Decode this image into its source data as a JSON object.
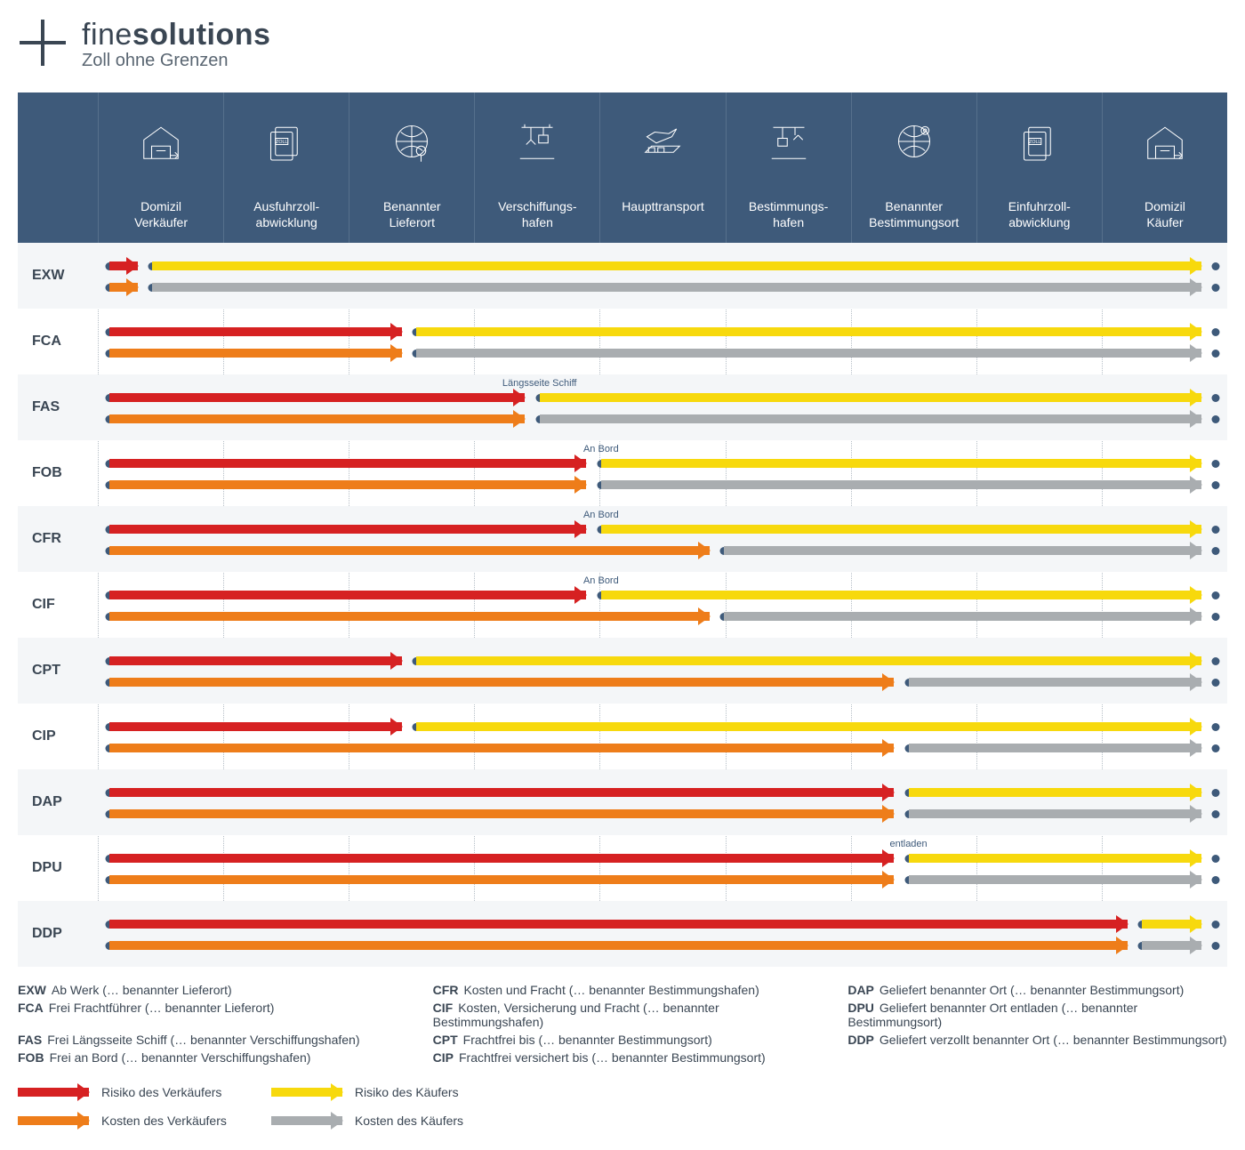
{
  "brand": {
    "name_light": "fine",
    "name_bold": "solutions",
    "tagline": "Zoll ohne Grenzen"
  },
  "colors": {
    "header_bg": "#3e5a7a",
    "risk_seller": "#d62122",
    "cost_seller": "#ee7d1a",
    "risk_buyer": "#f7d90d",
    "cost_buyer": "#a9adb0",
    "dot": "#3e5a7a"
  },
  "columns": [
    "Domizil\nVerkäufer",
    "Ausfuhrzoll-\nabwicklung",
    "Benannter\nLieferort",
    "Verschiffungs-\nhafen",
    "Haupttransport",
    "Bestimmungs-\nhafen",
    "Benannter\nBestimmungsort",
    "Einfuhrzoll-\nabwicklung",
    "Domizil\nKäufer"
  ],
  "icons": [
    "warehouse",
    "customs",
    "globe-pin",
    "crane",
    "ship-plane",
    "crane-down",
    "globe-target",
    "customs",
    "warehouse"
  ],
  "terms": [
    {
      "code": "EXW",
      "risk": 0.35,
      "cost": 0.35
    },
    {
      "code": "FCA",
      "risk": 2.5,
      "cost": 2.5
    },
    {
      "code": "FAS",
      "risk": 3.5,
      "cost": 3.5,
      "ann_risk": {
        "text": "Längsseite Schiff",
        "at": 3.5
      }
    },
    {
      "code": "FOB",
      "risk": 4.0,
      "cost": 4.0,
      "ann_risk": {
        "text": "An Bord",
        "at": 4.0
      }
    },
    {
      "code": "CFR",
      "risk": 4.0,
      "cost": 5.0,
      "ann_risk": {
        "text": "An Bord",
        "at": 4.0
      }
    },
    {
      "code": "CIF",
      "risk": 4.0,
      "cost": 5.0,
      "ann_risk": {
        "text": "An Bord",
        "at": 4.0
      }
    },
    {
      "code": "CPT",
      "risk": 2.5,
      "cost": 6.5
    },
    {
      "code": "CIP",
      "risk": 2.5,
      "cost": 6.5
    },
    {
      "code": "DAP",
      "risk": 6.5,
      "cost": 6.5
    },
    {
      "code": "DPU",
      "risk": 6.5,
      "cost": 6.5,
      "ann_risk": {
        "text": "entladen",
        "at": 6.5
      }
    },
    {
      "code": "DDP",
      "risk": 8.4,
      "cost": 8.4
    }
  ],
  "definitions": [
    {
      "code": "EXW",
      "text": "Ab Werk (… benannter Lieferort)"
    },
    {
      "code": "FCA",
      "text": "Frei Frachtführer (… benannter Lieferort)"
    },
    {
      "code": "FAS",
      "text": "Frei Längsseite Schiff (… benannter Verschiffungshafen)"
    },
    {
      "code": "FOB",
      "text": "Frei an Bord (… benannter Verschiffungshafen)"
    },
    {
      "code": "CFR",
      "text": "Kosten und Fracht (… benannter Bestimmungshafen)"
    },
    {
      "code": "CIF",
      "text": "Kosten, Versicherung und Fracht (… benannter Bestimmungshafen)"
    },
    {
      "code": "CPT",
      "text": "Frachtfrei bis (… benannter Bestimmungsort)"
    },
    {
      "code": "CIP",
      "text": "Frachtfrei versichert bis (… benannter Bestimmungsort)"
    },
    {
      "code": "DAP",
      "text": "Geliefert benannter Ort (… benannter Bestimmungsort)"
    },
    {
      "code": "DPU",
      "text": "Geliefert benannter Ort entladen (… benannter Bestimmungsort)"
    },
    {
      "code": "DDP",
      "text": "Geliefert verzollt benannter Ort (… benannter Bestimmungsort)"
    }
  ],
  "legend": {
    "risk_seller": "Risiko des Verkäufers",
    "cost_seller": "Kosten des Verkäufers",
    "risk_buyer": "Risiko des Käufers",
    "cost_buyer": "Kosten des Käufers"
  },
  "geometry": {
    "n_cols": 9,
    "start_pad_pct": 1.0,
    "end_pad_pct": 1.0,
    "arrow_head_gap_pct": 1.3
  }
}
